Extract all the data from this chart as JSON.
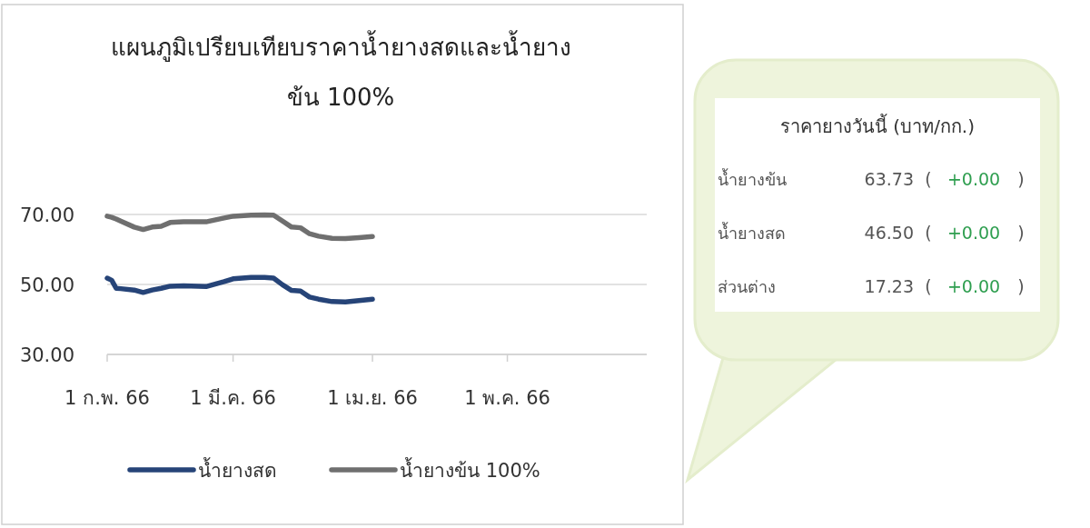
{
  "chart_data": [
    {
      "type": "line",
      "title": "แผนภูมิเปรียบเทียบราคาน้ำยางสดและน้ำยางข้น 100%",
      "x": [
        "--02-01",
        "--02-02",
        "--02-03",
        "--02-04",
        "--02-07",
        "--02-09",
        "--02-11",
        "--02-13",
        "--02-15",
        "--02-18",
        "--02-23",
        "--02-27",
        "--03-01",
        "--03-05",
        "--03-08",
        "--03-10",
        "--03-12",
        "--03-14",
        "--03-16",
        "--03-18",
        "--03-20",
        "--03-23",
        "--03-26",
        "--03-29",
        "--04-01"
      ],
      "series": [
        {
          "name": "น้ำยางสด",
          "color": "#264478",
          "values": [
            51.8,
            51.2,
            48.9,
            48.8,
            48.4,
            47.7,
            48.4,
            48.9,
            49.5,
            49.6,
            49.4,
            50.8,
            51.6,
            52.0,
            52.0,
            51.8,
            49.9,
            48.3,
            48.1,
            46.4,
            45.8,
            45.1,
            45.0,
            45.4,
            45.8
          ]
        },
        {
          "name": "น้ำยางข้น 100%",
          "color": "#6f6f6f",
          "values": [
            69.5,
            69.2,
            68.7,
            68.1,
            66.4,
            65.7,
            66.4,
            66.6,
            67.7,
            67.9,
            67.9,
            69.0,
            69.5,
            69.8,
            69.9,
            69.8,
            68.1,
            66.4,
            66.2,
            64.5,
            63.8,
            63.2,
            63.1,
            63.4,
            63.7
          ]
        }
      ],
      "xlim": [
        "--02-01",
        "--06-01"
      ],
      "xticks": [
        {
          "value": "--02-01",
          "label": "1 ก.พ. 66"
        },
        {
          "value": "--03-01",
          "label": "1 มี.ค. 66"
        },
        {
          "value": "--04-01",
          "label": "1 เม.ย. 66"
        },
        {
          "value": "--05-01",
          "label": "1 พ.ค. 66"
        }
      ],
      "ylim": [
        30,
        70
      ],
      "yticks": [
        {
          "value": 30,
          "label": "30.00"
        },
        {
          "value": 50,
          "label": "50.00"
        },
        {
          "value": 70,
          "label": "70.00"
        }
      ],
      "grid": "y",
      "legend": "bottom",
      "marker": "none",
      "line_style": "solid"
    },
    {
      "type": "other",
      "title": "ราคายางวันนี้ (บาท/กก.)",
      "annotations": [
        "น้ำยางข้น",
        "63.73",
        "(",
        "+0.00",
        ")",
        "น้ำยางสด",
        "46.50",
        "(",
        "+0.00",
        ")",
        "ส่วนต่าง",
        "17.23",
        "(",
        "+0.00",
        ")"
      ]
    }
  ]
}
